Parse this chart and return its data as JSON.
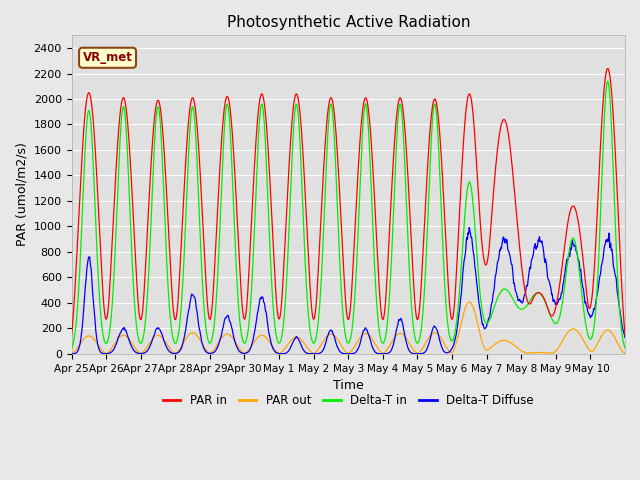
{
  "title": "Photosynthetic Active Radiation",
  "xlabel": "Time",
  "ylabel": "PAR (umol/m2/s)",
  "ylim": [
    0,
    2500
  ],
  "yticks": [
    0,
    200,
    400,
    600,
    800,
    1000,
    1200,
    1400,
    1600,
    1800,
    2000,
    2200,
    2400
  ],
  "xtick_labels": [
    "Apr 25",
    "Apr 26",
    "Apr 27",
    "Apr 28",
    "Apr 29",
    "Apr 30",
    "May 1",
    "May 2",
    "May 3",
    "May 4",
    "May 5",
    "May 6",
    "May 7",
    "May 8",
    "May 9",
    "May 10"
  ],
  "annotation_text": "VR_met",
  "background_color": "#e8e8e8",
  "axes_bg_color": "#e0e0e0",
  "grid_color": "#ffffff",
  "colors": {
    "par_in": "#ff0000",
    "par_out": "#ffa500",
    "delta_t_in": "#00ee00",
    "delta_t_diffuse": "#0000ff"
  },
  "legend_labels": [
    "PAR in",
    "PAR out",
    "Delta-T in",
    "Delta-T Diffuse"
  ],
  "n_days": 16,
  "peak_par_in": [
    2050,
    2010,
    1990,
    2010,
    2020,
    2040,
    2040,
    2010,
    2010,
    2010,
    2000,
    2040,
    1840,
    480,
    1160,
    2240
  ],
  "peak_par_out": [
    140,
    145,
    145,
    165,
    155,
    145,
    130,
    155,
    160,
    160,
    165,
    405,
    105,
    10,
    195,
    185
  ],
  "peak_delta_t_in": [
    1910,
    1940,
    1940,
    1940,
    1960,
    1960,
    1960,
    1960,
    1960,
    1960,
    1960,
    1340,
    500,
    470,
    900,
    2140
  ],
  "delta_t_in_width": [
    0.18,
    0.18,
    0.18,
    0.18,
    0.18,
    0.18,
    0.18,
    0.18,
    0.18,
    0.18,
    0.18,
    0.2,
    0.35,
    0.35,
    0.22,
    0.18
  ],
  "peak_par_in_width": [
    0.3,
    0.3,
    0.3,
    0.3,
    0.3,
    0.3,
    0.3,
    0.3,
    0.3,
    0.3,
    0.3,
    0.3,
    0.4,
    0.4,
    0.35,
    0.3
  ],
  "peak_delta_t_diffuse": [
    750,
    200,
    200,
    460,
    290,
    440,
    130,
    185,
    200,
    275,
    215,
    950,
    890,
    900,
    850,
    900
  ],
  "delta_t_diffuse_width": [
    0.12,
    0.15,
    0.15,
    0.15,
    0.15,
    0.15,
    0.12,
    0.12,
    0.12,
    0.12,
    0.12,
    0.2,
    0.28,
    0.3,
    0.28,
    0.25
  ]
}
